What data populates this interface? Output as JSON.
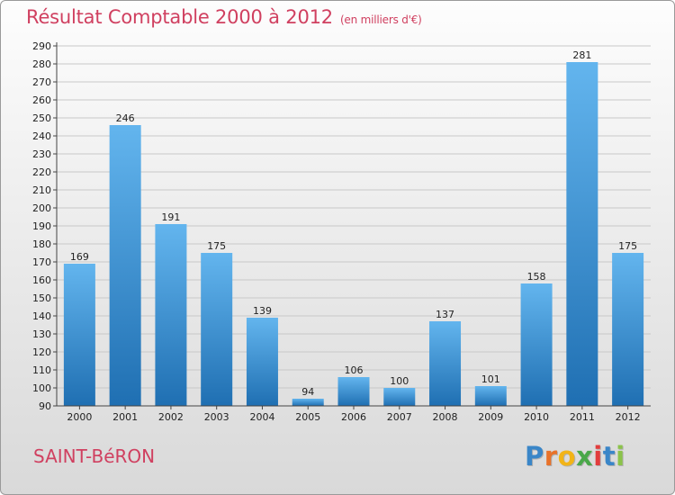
{
  "chart_data": {
    "type": "bar",
    "title": "Résultat Comptable 2000 à 2012",
    "subtitle": "(en milliers d'€)",
    "categories": [
      "2000",
      "2001",
      "2002",
      "2003",
      "2004",
      "2005",
      "2006",
      "2007",
      "2008",
      "2009",
      "2010",
      "2011",
      "2012"
    ],
    "values": [
      169,
      246,
      191,
      175,
      139,
      94,
      106,
      100,
      137,
      101,
      158,
      281,
      175
    ],
    "ylim": [
      90,
      290
    ],
    "yticks": [
      90,
      100,
      110,
      120,
      130,
      140,
      150,
      160,
      170,
      180,
      190,
      200,
      210,
      220,
      230,
      240,
      250,
      260,
      270,
      280,
      290
    ],
    "xlabel": "",
    "ylabel": "",
    "grid": true
  },
  "footer": {
    "commune": "SAINT-BéRON",
    "brand_letters": [
      "P",
      "r",
      "o",
      "x",
      "i",
      "t",
      "i"
    ]
  },
  "colors": {
    "title": "#d04060",
    "bar_top": "#63b5ee",
    "bar_bottom": "#1f6fb2",
    "brand": [
      "#3a86c8",
      "#e8722a",
      "#f2b417",
      "#4aa84a",
      "#e23d3d",
      "#3a86c8",
      "#8bc34a"
    ]
  }
}
